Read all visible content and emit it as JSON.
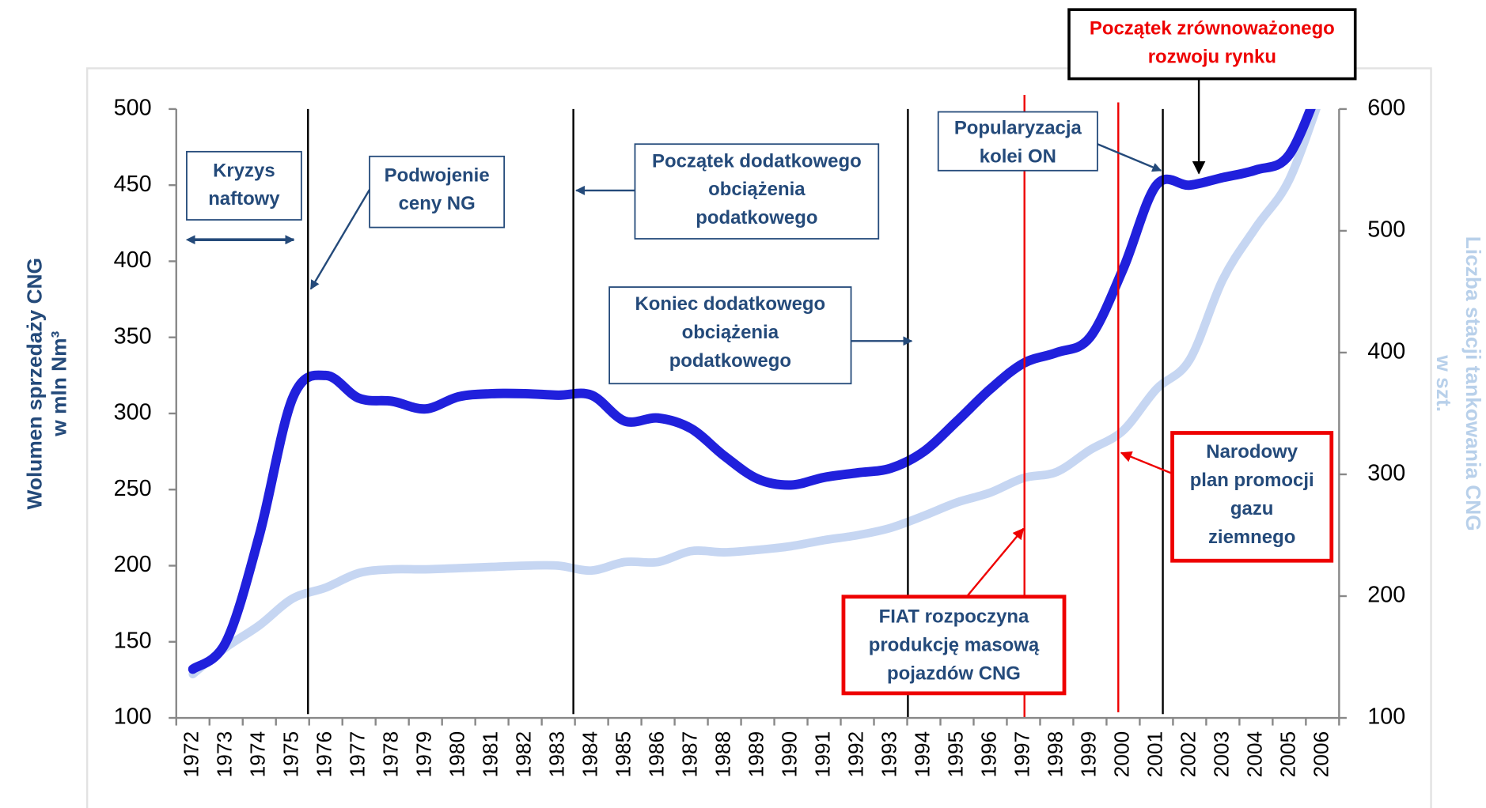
{
  "chart_data": {
    "type": "line",
    "categories": [
      "1972",
      "1973",
      "1974",
      "1975",
      "1976",
      "1977",
      "1978",
      "1979",
      "1980",
      "1981",
      "1982",
      "1983",
      "1984",
      "1985",
      "1986",
      "1987",
      "1988",
      "1989",
      "1990",
      "1991",
      "1992",
      "1993",
      "1994",
      "1995",
      "1996",
      "1997",
      "1998",
      "1999",
      "2000",
      "2001",
      "2002",
      "2003",
      "2004",
      "2005",
      "2006"
    ],
    "series": [
      {
        "color": "#2020dc",
        "axis": "y",
        "values": [
          132,
          150,
          220,
          310,
          325,
          310,
          308,
          303,
          311,
          313,
          313,
          312,
          312,
          295,
          297,
          290,
          272,
          257,
          253,
          258,
          261,
          264,
          275,
          295,
          316,
          333,
          340,
          350,
          395,
          450,
          450,
          455,
          460,
          470,
          520
        ]
      },
      {
        "color": "#c6d6f2",
        "axis": "y2",
        "values": [
          136,
          158,
          176,
          198,
          207,
          219,
          222,
          222,
          223,
          224,
          225,
          225,
          221,
          228,
          228,
          237,
          236,
          238,
          241,
          246,
          250,
          256,
          266,
          277,
          285,
          297,
          302,
          320,
          336,
          370,
          394,
          460,
          503,
          542,
          615
        ]
      }
    ],
    "ylim": [
      100,
      500
    ],
    "yticks": [
      100,
      150,
      200,
      250,
      300,
      350,
      400,
      450,
      500
    ],
    "y2lim": [
      100,
      600
    ],
    "y2ticks": [
      100,
      200,
      300,
      400,
      500,
      600
    ],
    "ylabel": [
      "Wolumen sprzedaży CNG",
      "w mln Nm³"
    ],
    "y2label": [
      "Liczba stacji tankowania CNG",
      "w szt."
    ],
    "annotations": [
      [
        "Kryzys",
        "naftowy"
      ],
      [
        "Podwojenie",
        "ceny NG"
      ],
      [
        "Początek dodatkowego",
        "obciążenia",
        "podatkowego"
      ],
      [
        "Koniec dodatkowego",
        "obciążenia",
        "podatkowego"
      ],
      [
        "Popularyzacja",
        "kolei ON"
      ],
      [
        "Początek zrównoważonego",
        "rozwoju rynku"
      ],
      [
        "Narodowy",
        "plan promocji",
        "gazu",
        "ziemnego"
      ],
      [
        "FIAT rozpoczyna",
        "produkcję masową",
        "pojazdów CNG"
      ]
    ]
  }
}
